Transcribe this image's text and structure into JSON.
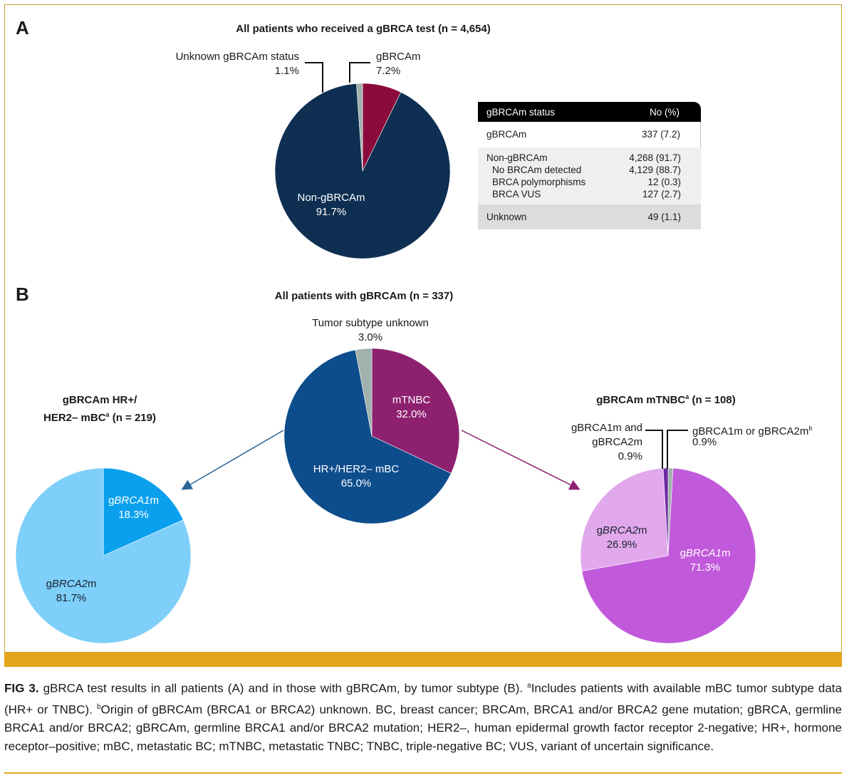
{
  "panel_a": {
    "letter": "A",
    "title": "All patients who received a gBRCA test (n = 4,654)",
    "labels": {
      "unknown_name": "Unknown gBRCAm status",
      "unknown_value": "1.1%",
      "gbrcam_name": "gBRCAm",
      "gbrcam_value": "7.2%",
      "non_name": "Non-gBRCAm",
      "non_value": "91.7%"
    },
    "table": {
      "header": [
        "gBRCAm status",
        "No (%)"
      ],
      "rows": [
        {
          "label": "gBRCAm",
          "value": "337 (7.2)"
        },
        {
          "label": "Non-gBRCAm",
          "value": "4,268 (91.7)"
        },
        {
          "label": "No BRCAm detected",
          "value": "4,129 (88.7)"
        },
        {
          "label": "BRCA polymorphisms",
          "value": "12 (0.3)"
        },
        {
          "label": "BRCA VUS",
          "value": "127 (2.7)"
        },
        {
          "label": "Unknown",
          "value": "49 (1.1)"
        }
      ]
    }
  },
  "panel_b": {
    "letter": "B",
    "title": "All patients with gBRCAm (n = 337)",
    "main_labels": {
      "unknown_name": "Tumor subtype unknown",
      "unknown_value": "3.0%",
      "mtnbc_name": "mTNBC",
      "mtnbc_value": "32.0%",
      "hr_name": "HR+/HER2– mBC",
      "hr_value": "65.0%"
    },
    "left": {
      "title_line1": "gBRCAm HR+/",
      "title_line2": "HER2– mBC",
      "title_sup": "a",
      "title_n": " (n = 219)",
      "brca1_prefix": "g",
      "brca1_gene": "BRCA1",
      "brca1_suffix": "m",
      "brca1_value": "18.3%",
      "brca2_prefix": "g",
      "brca2_gene": "BRCA2",
      "brca2_suffix": "m",
      "brca2_value": "81.7%"
    },
    "right": {
      "title_main": "gBRCAm mTNBC",
      "title_sup": "a",
      "title_n": " (n = 108)",
      "both_line1": "gBRCA1m and",
      "both_line2": "gBRCA2m",
      "both_value": "0.9%",
      "either_text": "gBRCA1m or gBRCA2m",
      "either_sup": "b",
      "either_value": "0.9%",
      "brca2_prefix": "g",
      "brca2_gene": "BRCA2",
      "brca2_suffix": "m",
      "brca2_value": "26.9%",
      "brca1_prefix": "g",
      "brca1_gene": "BRCA1",
      "brca1_suffix": "m",
      "brca1_value": "71.3%"
    }
  },
  "caption": {
    "fig_label": "FIG 3.",
    "text_1": " gBRCA test results in all patients (A) and in those with gBRCAm, by tumor subtype (B). ",
    "sup_a": "a",
    "text_2": "Includes patients with available mBC tumor subtype data (HR+ or TNBC). ",
    "sup_b": "b",
    "text_3": "Origin of gBRCAm (BRCA1 or BRCA2) unknown. BC, breast cancer; BRCAm, BRCA1 and/or BRCA2 gene mutation; gBRCA, germline BRCA1 and/or BRCA2; gBRCAm, germline BRCA1 and/or BRCA2 mutation; HER2–, human epidermal growth factor receptor 2-negative; HR+, hormone receptor–positive; mBC, metastatic BC; mTNBC, metastatic TNBC; TNBC, triple-negative BC; VUS, variant of uncertain significance."
  },
  "colors": {
    "navy": "#0e2f52",
    "maroon": "#8b0a3c",
    "gray_green": "#9fb2ab",
    "hr_blue": "#0e4d8c",
    "mtnbc_purple": "#8e2070",
    "light_blue": "#7ecff9",
    "bright_blue": "#0ba0ee",
    "magenta": "#c159db",
    "light_lavender": "#e2a8ec",
    "dark_purple": "#6b2aa0",
    "gold": "#e3a51a"
  },
  "chart_data": [
    {
      "type": "pie",
      "title": "All patients who received a gBRCA test (n = 4,654)",
      "slices": [
        {
          "name": "gBRCAm",
          "value": 7.2,
          "color": "#8b0a3c"
        },
        {
          "name": "Non-gBRCAm",
          "value": 91.7,
          "color": "#0e2f52"
        },
        {
          "name": "Unknown gBRCAm status",
          "value": 1.1,
          "color": "#9fb2ab"
        }
      ]
    },
    {
      "type": "pie",
      "title": "All patients with gBRCAm (n = 337)",
      "slices": [
        {
          "name": "mTNBC",
          "value": 32.0,
          "color": "#8e2070"
        },
        {
          "name": "HR+/HER2– mBC",
          "value": 65.0,
          "color": "#0e4d8c"
        },
        {
          "name": "Tumor subtype unknown",
          "value": 3.0,
          "color": "#9fb2ab"
        }
      ]
    },
    {
      "type": "pie",
      "title": "gBRCAm HR+/HER2– mBC (n = 219)",
      "slices": [
        {
          "name": "gBRCA1m",
          "value": 18.3,
          "color": "#0ba0ee"
        },
        {
          "name": "gBRCA2m",
          "value": 81.7,
          "color": "#7ecff9"
        }
      ]
    },
    {
      "type": "pie",
      "title": "gBRCAm mTNBC (n = 108)",
      "slices": [
        {
          "name": "gBRCA1m or gBRCA2m",
          "value": 0.9,
          "color": "#9fb2ab"
        },
        {
          "name": "gBRCA1m",
          "value": 71.3,
          "color": "#c159db"
        },
        {
          "name": "gBRCA2m",
          "value": 26.9,
          "color": "#e2a8ec"
        },
        {
          "name": "gBRCA1m and gBRCA2m",
          "value": 0.9,
          "color": "#6b2aa0"
        }
      ]
    }
  ]
}
